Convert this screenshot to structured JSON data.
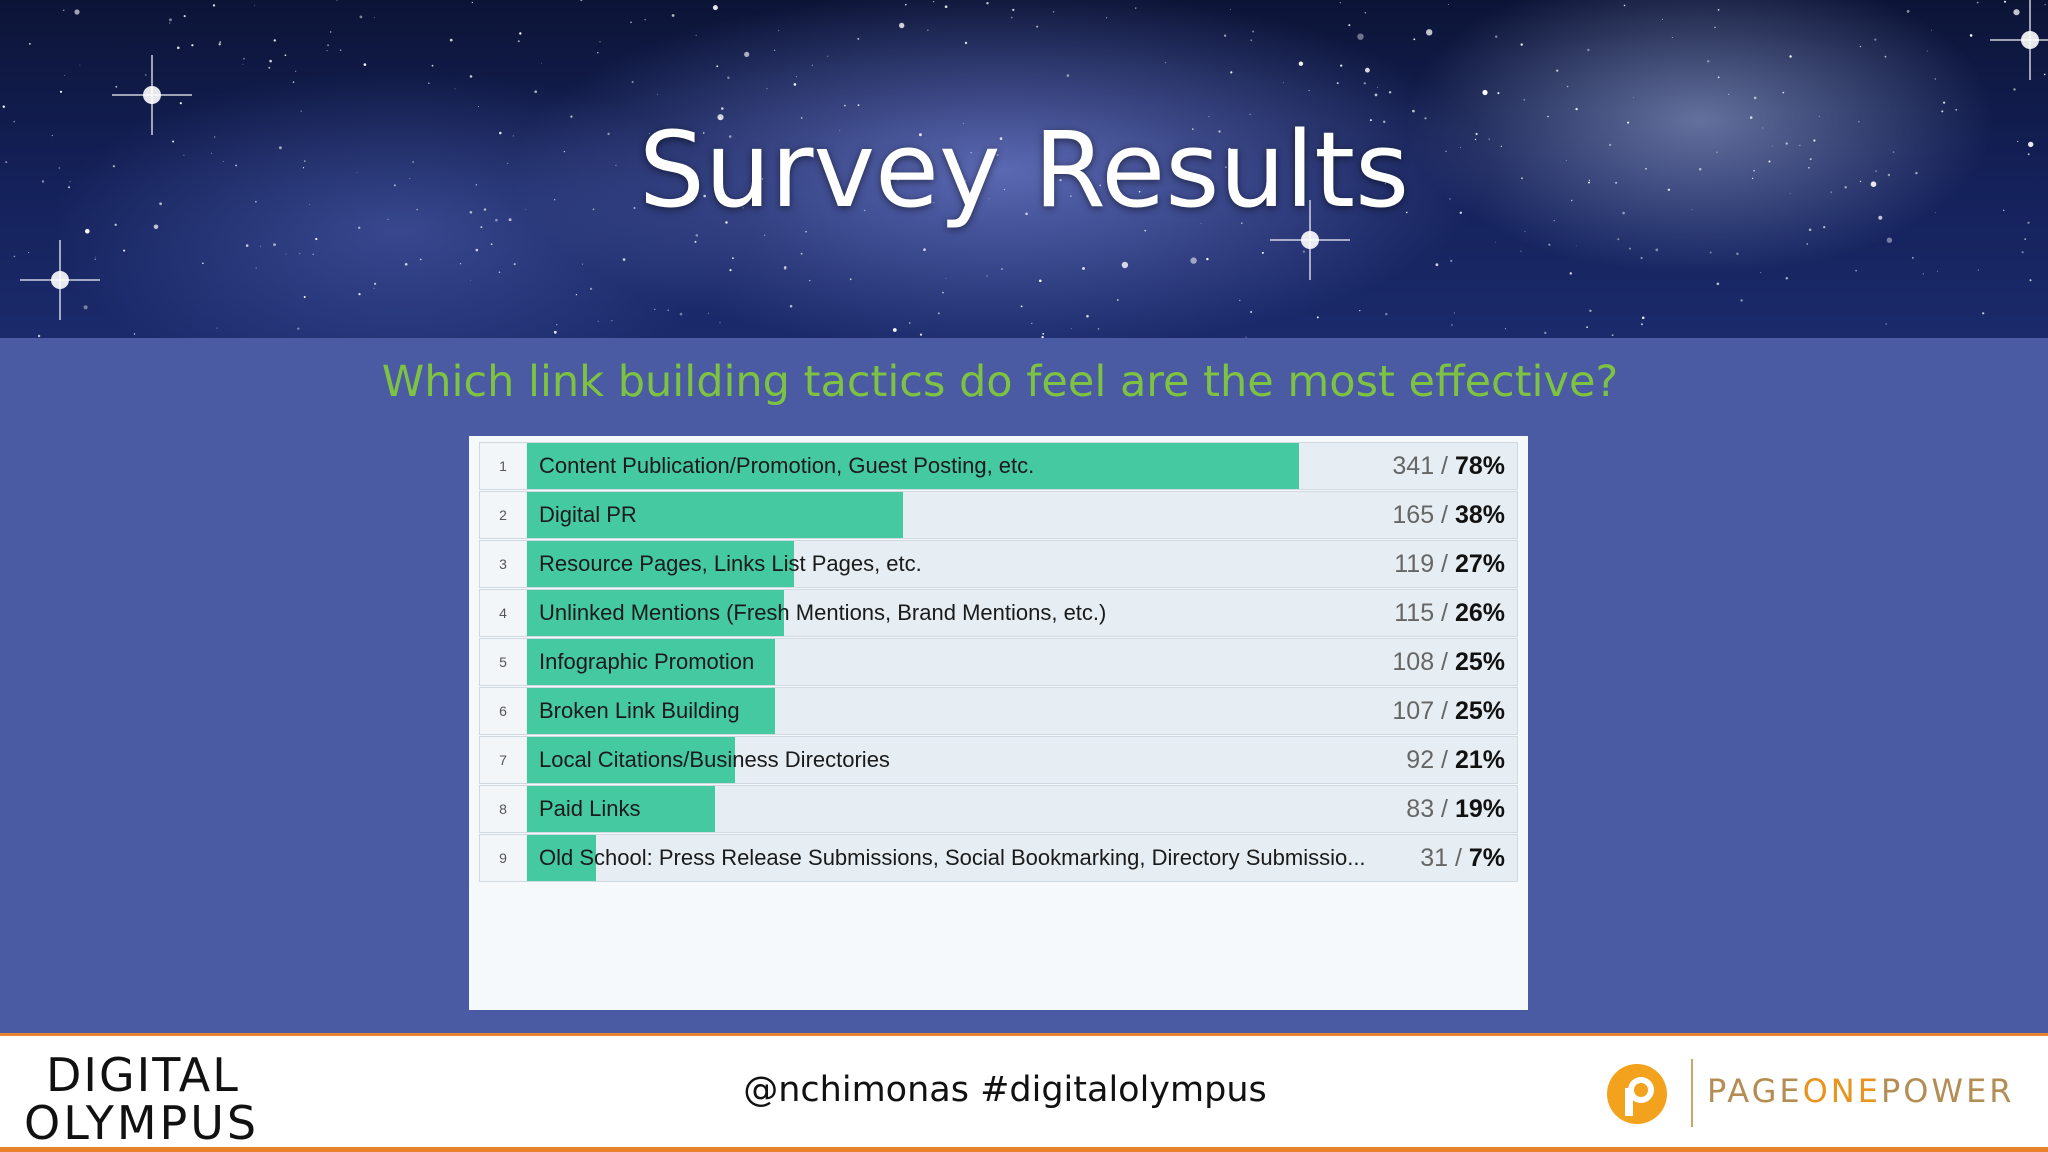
{
  "slide": {
    "title": "Survey Results",
    "question": "Which link building tactics do feel are the most effective?"
  },
  "chart_data": {
    "type": "bar",
    "orientation": "horizontal",
    "title": "",
    "xlim": [
      0,
      100
    ],
    "colors": {
      "bar": "#45c9a0",
      "track": "#e6eef3"
    },
    "rows": [
      {
        "rank": "1",
        "label": "Content Publication/Promotion, Guest Posting, etc.",
        "count": "341",
        "percent": "78%",
        "value": 78
      },
      {
        "rank": "2",
        "label": "Digital PR",
        "count": "165",
        "percent": "38%",
        "value": 38
      },
      {
        "rank": "3",
        "label": "Resource Pages, Links List Pages, etc.",
        "count": "119",
        "percent": "27%",
        "value": 27
      },
      {
        "rank": "4",
        "label": "Unlinked Mentions (Fresh Mentions, Brand Mentions, etc.)",
        "count": "115",
        "percent": "26%",
        "value": 26
      },
      {
        "rank": "5",
        "label": "Infographic Promotion",
        "count": "108",
        "percent": "25%",
        "value": 25
      },
      {
        "rank": "6",
        "label": "Broken Link Building",
        "count": "107",
        "percent": "25%",
        "value": 25
      },
      {
        "rank": "7",
        "label": "Local Citations/Business Directories",
        "count": "92",
        "percent": "21%",
        "value": 21
      },
      {
        "rank": "8",
        "label": "Paid Links",
        "count": "83",
        "percent": "19%",
        "value": 19
      },
      {
        "rank": "9",
        "label": "Old School: Press Release Submissions, Social Bookmarking, Directory Submissio...",
        "count": "31",
        "percent": "7%",
        "value": 7
      }
    ]
  },
  "footer": {
    "logo_left_line1": "DIGITAL",
    "logo_left_line2": "OLYMPUS",
    "handle": "@nchimonas #digitalolympus",
    "logo_right_a": "PAGE",
    "logo_right_b": "ONE",
    "logo_right_c": "POWER",
    "accent_color": "#e8822c"
  }
}
